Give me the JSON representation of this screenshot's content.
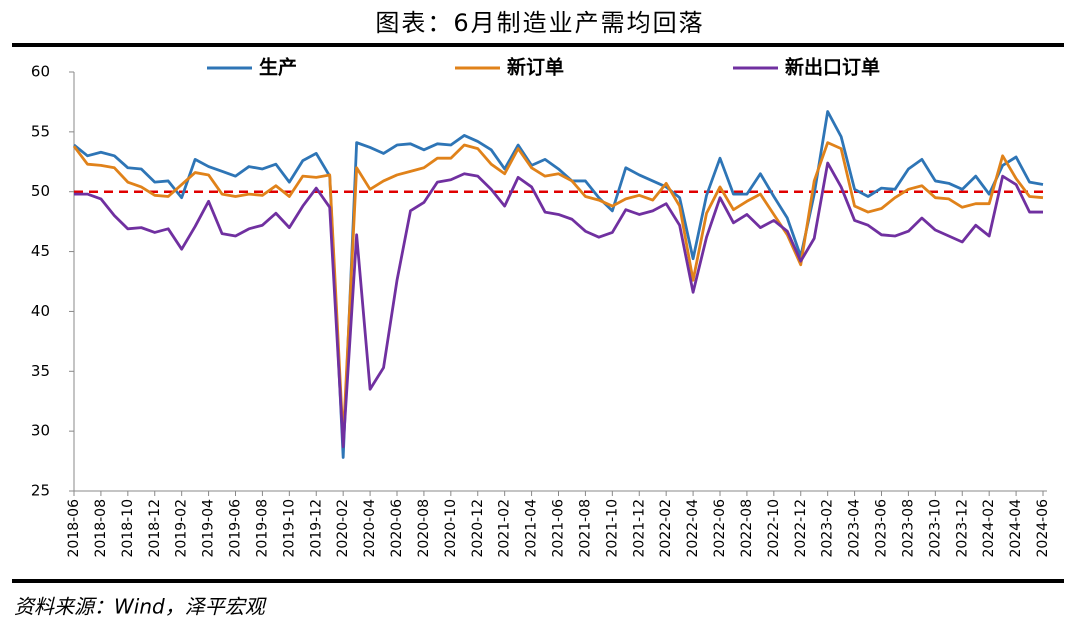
{
  "chart_data": {
    "type": "line",
    "title": "图表：6月制造业产需均回落",
    "source": "资料来源：Wind，泽平宏观",
    "categories": [
      "2018-06",
      null,
      "2018-08",
      null,
      "2018-10",
      null,
      "2018-12",
      null,
      "2019-02",
      null,
      "2019-04",
      null,
      "2019-06",
      null,
      "2019-08",
      null,
      "2019-10",
      null,
      "2019-12",
      null,
      "2020-02",
      null,
      "2020-04",
      null,
      "2020-06",
      null,
      "2020-08",
      null,
      "2020-10",
      null,
      "2020-12",
      null,
      "2021-02",
      null,
      "2021-04",
      null,
      "2021-06",
      null,
      "2021-08",
      null,
      "2021-10",
      null,
      "2021-12",
      null,
      "2022-02",
      null,
      "2022-04",
      null,
      "2022-06",
      null,
      "2022-08",
      null,
      "2022-10",
      null,
      "2022-12",
      null,
      "2023-02",
      null,
      "2023-04",
      null,
      "2023-06",
      null,
      "2023-08",
      null,
      "2023-10",
      null,
      "2023-12",
      null,
      "2024-02",
      null,
      "2024-04",
      null,
      "2024-06"
    ],
    "series": [
      {
        "name": "生产",
        "color": "#2e75b6",
        "values": [
          53.9,
          53.0,
          53.3,
          53.0,
          52.0,
          51.9,
          50.8,
          50.9,
          49.5,
          52.7,
          52.1,
          51.7,
          51.3,
          52.1,
          51.9,
          52.3,
          50.8,
          52.6,
          53.2,
          51.3,
          27.8,
          54.1,
          53.7,
          53.2,
          53.9,
          54.0,
          53.5,
          54.0,
          53.9,
          54.7,
          54.2,
          53.5,
          51.9,
          53.9,
          52.2,
          52.7,
          51.9,
          50.9,
          50.9,
          49.5,
          48.4,
          52.0,
          51.4,
          50.9,
          50.4,
          49.5,
          44.4,
          49.7,
          52.8,
          49.8,
          49.8,
          51.5,
          49.6,
          47.8,
          44.6,
          49.8,
          56.7,
          54.6,
          50.2,
          49.6,
          50.3,
          50.2,
          51.9,
          52.7,
          50.9,
          50.7,
          50.2,
          51.3,
          49.8,
          52.2,
          52.9,
          50.8,
          50.6
        ]
      },
      {
        "name": "新订单",
        "color": "#e0821a",
        "values": [
          53.8,
          52.3,
          52.2,
          52.0,
          50.8,
          50.4,
          49.7,
          49.6,
          50.6,
          51.6,
          51.4,
          49.8,
          49.6,
          49.8,
          49.7,
          50.5,
          49.6,
          51.3,
          51.2,
          51.4,
          29.3,
          52.0,
          50.2,
          50.9,
          51.4,
          51.7,
          52.0,
          52.8,
          52.8,
          53.9,
          53.6,
          52.3,
          51.5,
          53.6,
          52.0,
          51.3,
          51.5,
          50.9,
          49.6,
          49.3,
          48.8,
          49.4,
          49.7,
          49.3,
          50.7,
          48.8,
          42.6,
          48.2,
          50.4,
          48.5,
          49.2,
          49.8,
          48.1,
          46.4,
          43.9,
          50.9,
          54.1,
          53.6,
          48.8,
          48.3,
          48.6,
          49.5,
          50.2,
          50.5,
          49.5,
          49.4,
          48.7,
          49.0,
          49.0,
          53.0,
          51.1,
          49.6,
          49.5
        ]
      },
      {
        "name": "新出口订单",
        "color": "#7030a0",
        "values": [
          49.8,
          49.8,
          49.4,
          48.0,
          46.9,
          47.0,
          46.6,
          46.9,
          45.2,
          47.1,
          49.2,
          46.5,
          46.3,
          46.9,
          47.2,
          48.2,
          47.0,
          48.8,
          50.3,
          48.7,
          28.7,
          46.4,
          33.5,
          35.3,
          42.6,
          48.4,
          49.1,
          50.8,
          51.0,
          51.5,
          51.3,
          50.2,
          48.8,
          51.2,
          50.4,
          48.3,
          48.1,
          47.7,
          46.7,
          46.2,
          46.6,
          48.5,
          48.1,
          48.4,
          49.0,
          47.2,
          41.6,
          46.2,
          49.5,
          47.4,
          48.1,
          47.0,
          47.6,
          46.7,
          44.2,
          46.1,
          52.4,
          50.4,
          47.6,
          47.2,
          46.4,
          46.3,
          46.7,
          47.8,
          46.8,
          46.3,
          45.8,
          47.2,
          46.3,
          51.3,
          50.6,
          48.3,
          48.3
        ]
      }
    ],
    "reference_line": {
      "value": 50,
      "color": "#e00000"
    },
    "ylim": [
      25,
      60
    ],
    "yticks": [
      25,
      30,
      35,
      40,
      45,
      50,
      55,
      60
    ],
    "legend": "top"
  }
}
